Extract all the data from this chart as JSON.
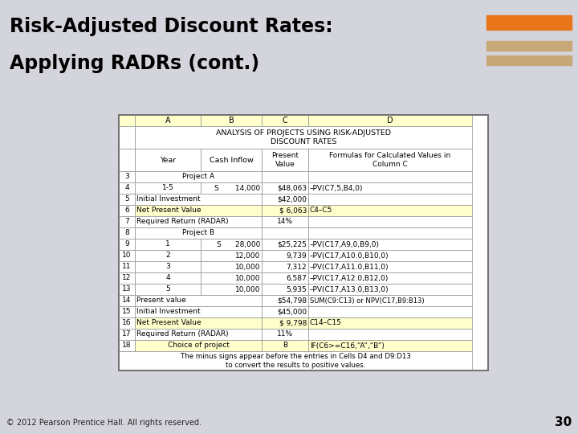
{
  "title_line1": "Risk-Adjusted Discount Rates:",
  "title_line2": "Applying RADRs (cont.)",
  "slide_bg": "#d4d4dc",
  "orange_bar_color": "#e8751a",
  "footer_text": "© 2012 Pearson Prentice Hall. All rights reserved.",
  "page_number": "30",
  "header_bg": "#ffffcc",
  "highlight_color": "#ffffcc",
  "footnote": "The minus signs appear before the entries in Cells D4 and D9:D13\nto convert the results to positive values."
}
